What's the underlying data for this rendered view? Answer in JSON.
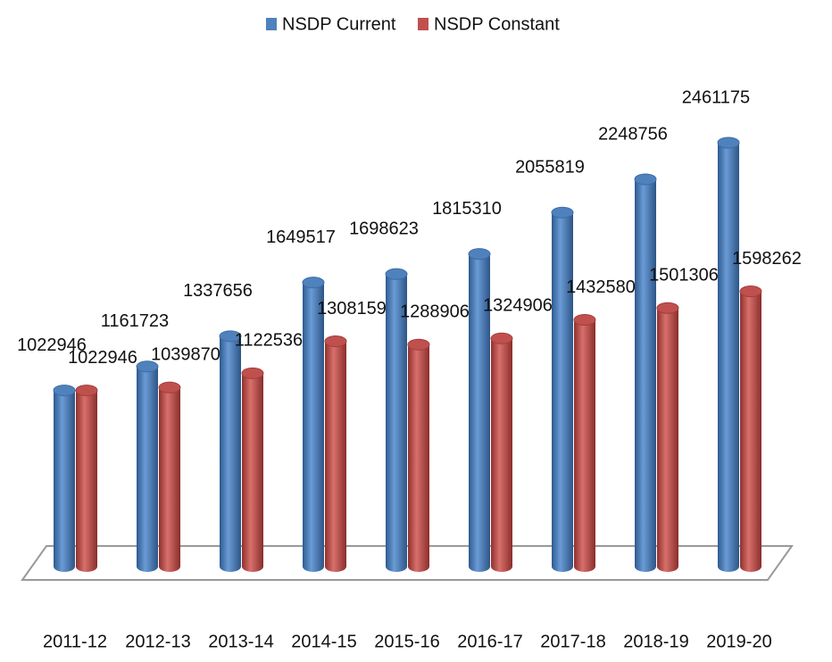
{
  "chart_data": {
    "type": "bar3d",
    "categories": [
      "2011-12",
      "2012-13",
      "2013-14",
      "2014-15",
      "2015-16",
      "2016-17",
      "2017-18",
      "2018-19",
      "2019-20"
    ],
    "series": [
      {
        "name": "NSDP Current",
        "color": "#4f81bd",
        "values": [
          1022946,
          1161723,
          1337656,
          1649517,
          1698623,
          1815310,
          2055819,
          2248756,
          2461175
        ]
      },
      {
        "name": "NSDP Constant",
        "color": "#c0504d",
        "values": [
          1022946,
          1039870,
          1122536,
          1308159,
          1288906,
          1324906,
          1432580,
          1501306,
          1598262
        ]
      }
    ],
    "legend": "top"
  }
}
